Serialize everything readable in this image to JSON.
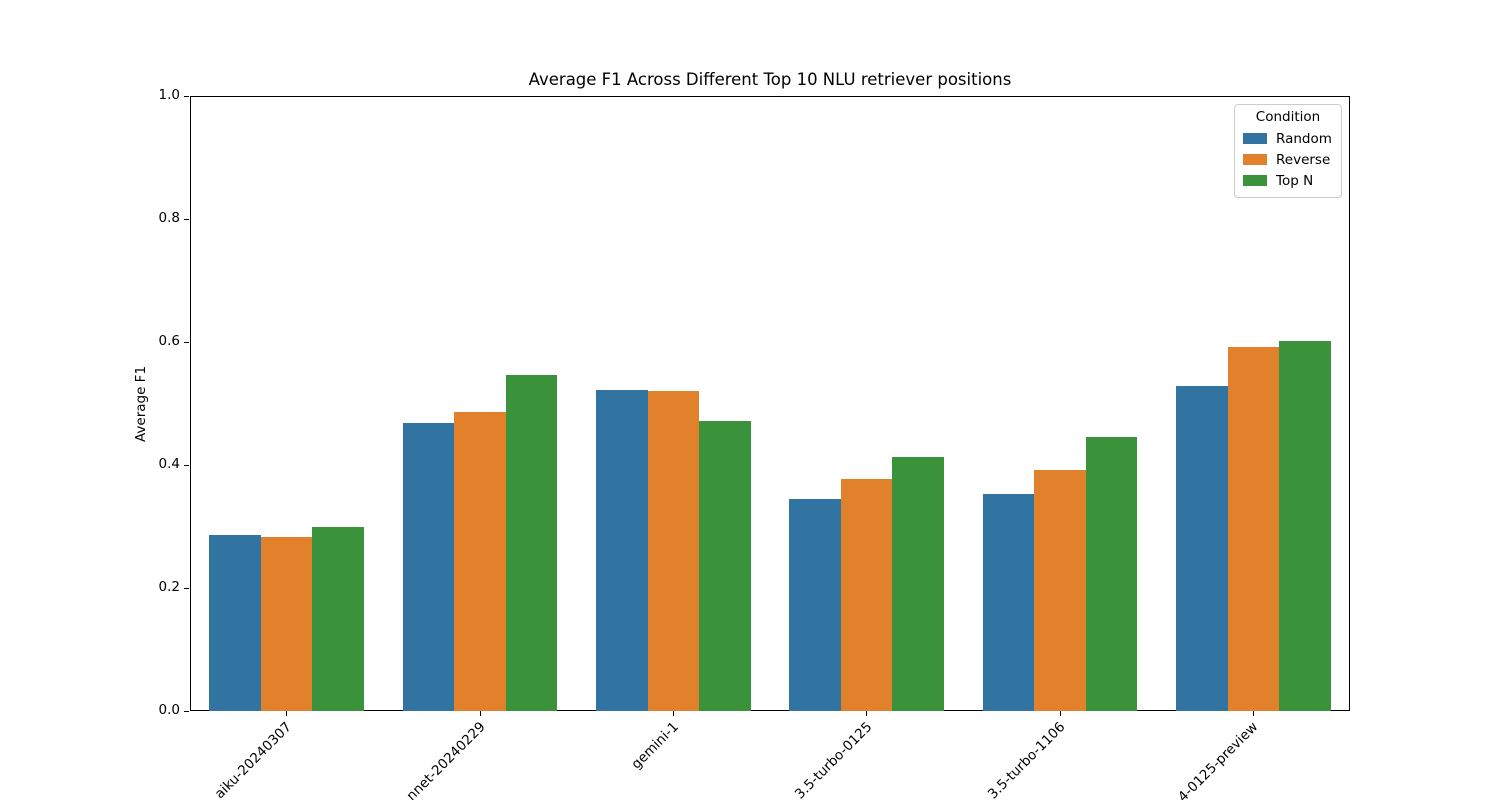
{
  "chart_data": {
    "type": "bar",
    "title": "Average F1 Across Different Top 10 NLU retriever positions",
    "xlabel": "",
    "ylabel": "Average F1",
    "ylim": [
      0.0,
      1.0
    ],
    "yticks": [
      "0.0",
      "0.2",
      "0.4",
      "0.6",
      "0.8",
      "1.0"
    ],
    "grid": false,
    "categories": [
      "aiku-20240307",
      "nnet-20240229",
      "gemini-1",
      "3.5-turbo-0125",
      "3.5-turbo-1106",
      "4-0125-preview"
    ],
    "series": [
      {
        "name": "Random",
        "color": "#3274a1",
        "values": [
          0.286,
          0.469,
          0.522,
          0.345,
          0.353,
          0.528
        ]
      },
      {
        "name": "Reverse",
        "color": "#e1812c",
        "values": [
          0.283,
          0.486,
          0.521,
          0.377,
          0.392,
          0.592
        ]
      },
      {
        "name": "Top N",
        "color": "#3a923a",
        "values": [
          0.3,
          0.547,
          0.471,
          0.413,
          0.446,
          0.602
        ]
      }
    ],
    "legend": {
      "title": "Condition",
      "position": "upper right"
    }
  }
}
